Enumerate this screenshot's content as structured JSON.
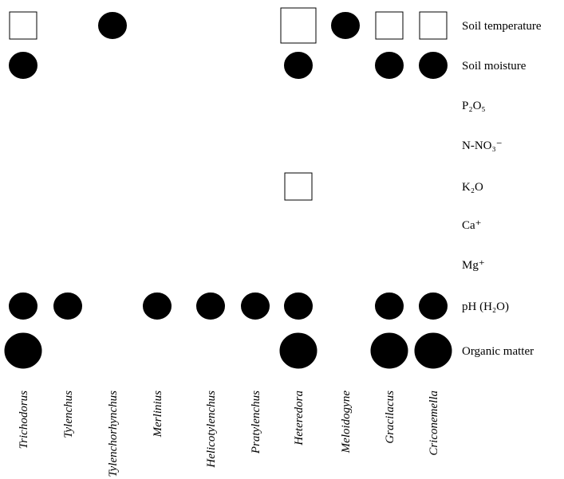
{
  "chart_data": {
    "type": "bubble-matrix",
    "title": "",
    "rows": [
      {
        "key": "soil_temp",
        "label": "Soil temperature"
      },
      {
        "key": "soil_moist",
        "label": "Soil moisture"
      },
      {
        "key": "p2o5",
        "label": "P₂O₅"
      },
      {
        "key": "n_no3",
        "label": "N-NO₃⁻"
      },
      {
        "key": "k2o",
        "label": "K₂O"
      },
      {
        "key": "ca",
        "label": "Ca⁺"
      },
      {
        "key": "mg",
        "label": "Mg⁺"
      },
      {
        "key": "ph",
        "label": "pH (H₂O)"
      },
      {
        "key": "om",
        "label": "Organic matter"
      }
    ],
    "columns": [
      "Trichodorus",
      "Tylenchus",
      "Tylenchorhynchus",
      "Merlinius",
      "Helicotylenchus",
      "Pratylenchus",
      "Heteredora",
      "Meloidogyne",
      "Gracilacus",
      "Criconemella"
    ],
    "cells": [
      {
        "row": 0,
        "col": 0,
        "shape": "square",
        "fill": "white",
        "magnitude": 1
      },
      {
        "row": 0,
        "col": 2,
        "shape": "circle",
        "fill": "black",
        "magnitude": 1
      },
      {
        "row": 0,
        "col": 6,
        "shape": "square",
        "fill": "white",
        "magnitude": 2
      },
      {
        "row": 0,
        "col": 7,
        "shape": "circle",
        "fill": "black",
        "magnitude": 1
      },
      {
        "row": 0,
        "col": 8,
        "shape": "square",
        "fill": "white",
        "magnitude": 1
      },
      {
        "row": 0,
        "col": 9,
        "shape": "square",
        "fill": "white",
        "magnitude": 1
      },
      {
        "row": 1,
        "col": 0,
        "shape": "circle",
        "fill": "black",
        "magnitude": 1
      },
      {
        "row": 1,
        "col": 6,
        "shape": "circle",
        "fill": "black",
        "magnitude": 1
      },
      {
        "row": 1,
        "col": 8,
        "shape": "circle",
        "fill": "black",
        "magnitude": 1
      },
      {
        "row": 1,
        "col": 9,
        "shape": "circle",
        "fill": "black",
        "magnitude": 1
      },
      {
        "row": 4,
        "col": 6,
        "shape": "square",
        "fill": "white",
        "magnitude": 1
      },
      {
        "row": 7,
        "col": 0,
        "shape": "circle",
        "fill": "black",
        "magnitude": 1
      },
      {
        "row": 7,
        "col": 1,
        "shape": "circle",
        "fill": "black",
        "magnitude": 1
      },
      {
        "row": 7,
        "col": 3,
        "shape": "circle",
        "fill": "black",
        "magnitude": 1
      },
      {
        "row": 7,
        "col": 4,
        "shape": "circle",
        "fill": "black",
        "magnitude": 1
      },
      {
        "row": 7,
        "col": 5,
        "shape": "circle",
        "fill": "black",
        "magnitude": 1
      },
      {
        "row": 7,
        "col": 6,
        "shape": "circle",
        "fill": "black",
        "magnitude": 1
      },
      {
        "row": 7,
        "col": 8,
        "shape": "circle",
        "fill": "black",
        "magnitude": 1
      },
      {
        "row": 7,
        "col": 9,
        "shape": "circle",
        "fill": "black",
        "magnitude": 1
      },
      {
        "row": 8,
        "col": 0,
        "shape": "circle",
        "fill": "black",
        "magnitude": 2
      },
      {
        "row": 8,
        "col": 6,
        "shape": "circle",
        "fill": "black",
        "magnitude": 2
      },
      {
        "row": 8,
        "col": 8,
        "shape": "circle",
        "fill": "black",
        "magnitude": 2
      },
      {
        "row": 8,
        "col": 9,
        "shape": "circle",
        "fill": "black",
        "magnitude": 2
      }
    ],
    "colors": {
      "filled": "#000000",
      "outline": "#000000",
      "empty": "#ffffff"
    }
  }
}
